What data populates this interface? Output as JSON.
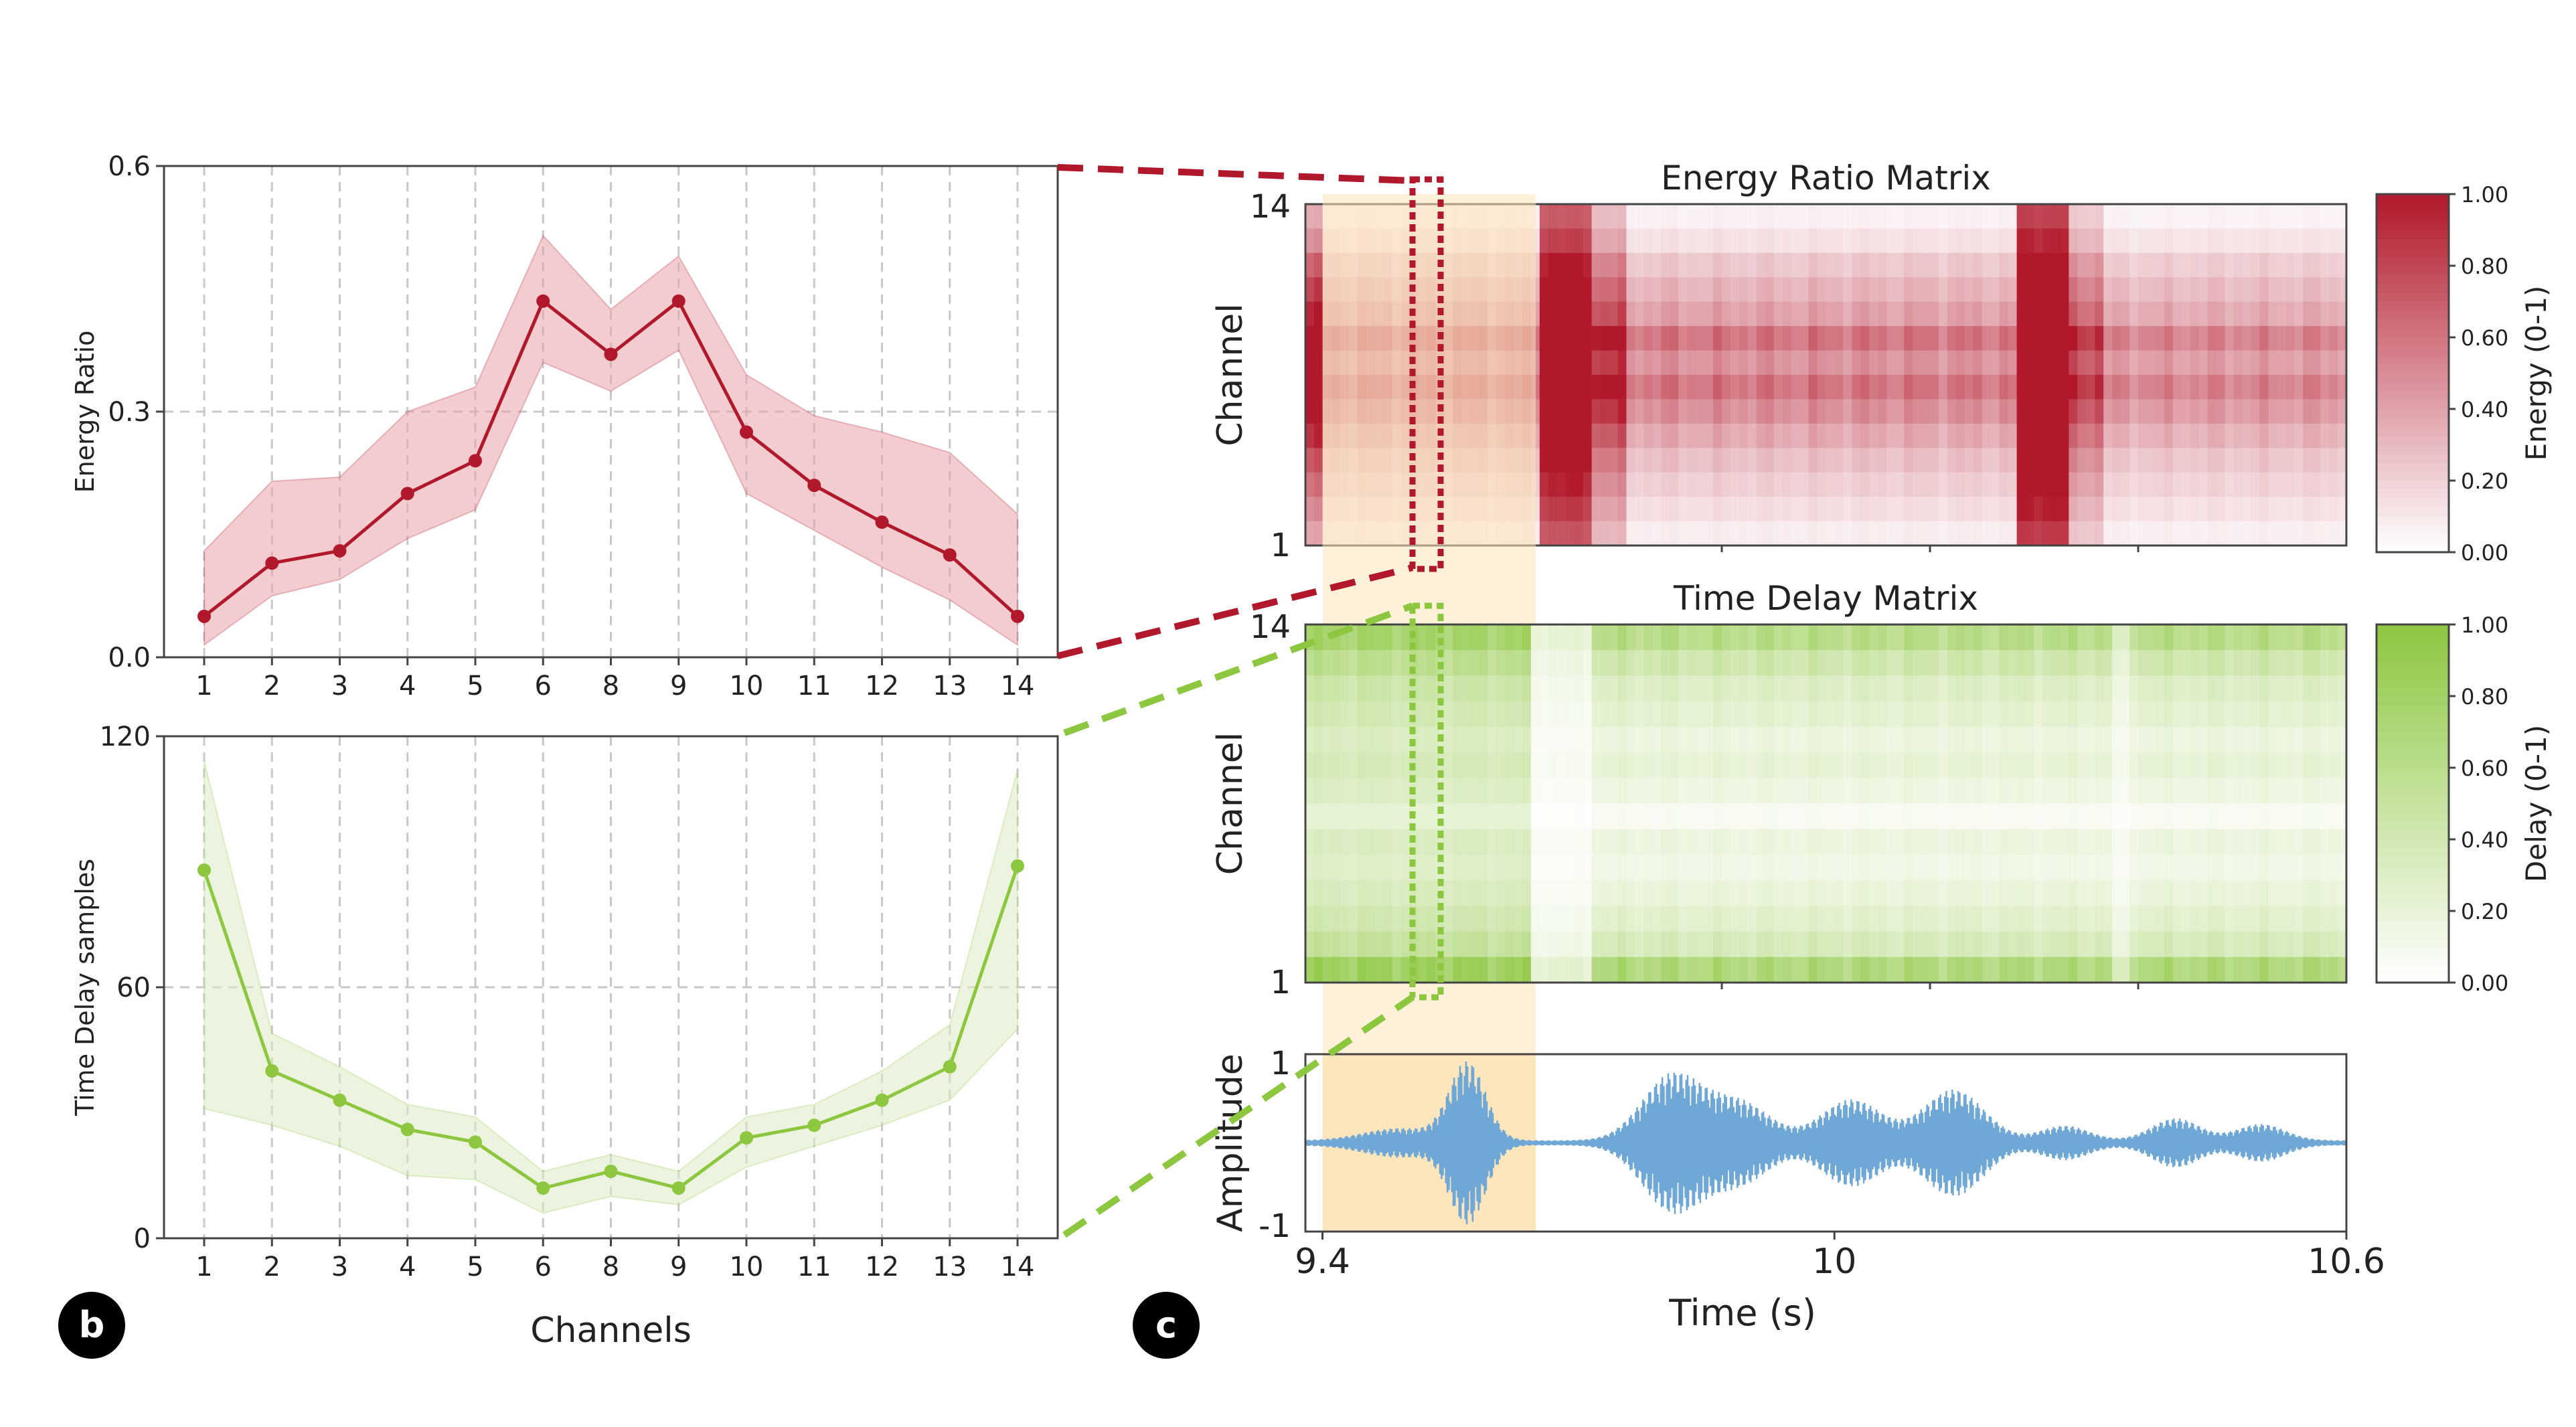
{
  "panel_b_label": "b",
  "panel_c_label": "c",
  "colors": {
    "energy": "#b2182b",
    "energy_band": "#e8a3a8",
    "delay": "#8dc63f",
    "delay_band": "#dcebc4",
    "highlight": "#fde6bc",
    "waveform": "#6fa8d6",
    "grid": "#c8c8c8"
  },
  "chart_data": [
    {
      "id": "energy_line",
      "type": "line",
      "title": "",
      "xlabel": "",
      "ylabel": "Energy Ratio",
      "categories": [
        "1",
        "2",
        "3",
        "4",
        "5",
        "6",
        "8",
        "9",
        "10",
        "11",
        "12",
        "13",
        "14"
      ],
      "series": [
        {
          "name": "mean",
          "values": [
            0.05,
            0.115,
            0.13,
            0.2,
            0.24,
            0.435,
            0.37,
            0.435,
            0.275,
            0.21,
            0.165,
            0.125,
            0.05
          ]
        },
        {
          "name": "upper",
          "values": [
            0.13,
            0.215,
            0.22,
            0.3,
            0.33,
            0.515,
            0.425,
            0.49,
            0.345,
            0.295,
            0.275,
            0.25,
            0.175
          ]
        },
        {
          "name": "lower",
          "values": [
            0.015,
            0.075,
            0.095,
            0.145,
            0.18,
            0.36,
            0.325,
            0.375,
            0.2,
            0.155,
            0.11,
            0.07,
            0.015
          ]
        }
      ],
      "ylim": [
        0.0,
        0.6
      ],
      "yticks": [
        "0.0",
        "0.3",
        "0.6"
      ],
      "grid": true
    },
    {
      "id": "delay_line",
      "type": "line",
      "title": "",
      "xlabel": "Channels",
      "ylabel": "Time Delay samples",
      "categories": [
        "1",
        "2",
        "3",
        "4",
        "5",
        "6",
        "8",
        "9",
        "10",
        "11",
        "12",
        "13",
        "14"
      ],
      "series": [
        {
          "name": "mean",
          "values": [
            88,
            40,
            33,
            26,
            23,
            12,
            16,
            12,
            24,
            27,
            33,
            41,
            89
          ]
        },
        {
          "name": "upper",
          "values": [
            114,
            49,
            41,
            32,
            29,
            16,
            20,
            16,
            29,
            32,
            40,
            51,
            112
          ]
        },
        {
          "name": "lower",
          "values": [
            31,
            27,
            22,
            15,
            14,
            6,
            10,
            8,
            17,
            22,
            27,
            33,
            50
          ]
        }
      ],
      "ylim": [
        0,
        120
      ],
      "yticks": [
        "0",
        "60",
        "120"
      ],
      "grid": true
    },
    {
      "id": "energy_matrix",
      "type": "heatmap",
      "title": "Energy Ratio Matrix",
      "xlabel": "",
      "ylabel": "Channel",
      "yticks": [
        "1",
        "14"
      ],
      "rows": 14,
      "x_range": [
        9.38,
        10.6
      ],
      "colorbar_label": "Energy (0-1)",
      "colorbar_ticks": [
        "0.00",
        "0.20",
        "0.40",
        "0.60",
        "0.80",
        "1.00"
      ],
      "row_profile": [
        0.1,
        0.18,
        0.26,
        0.34,
        0.46,
        0.6,
        0.74,
        0.58,
        0.74,
        0.5,
        0.4,
        0.3,
        0.16,
        0.08
      ],
      "col_segments": [
        {
          "t0": 9.38,
          "t1": 9.4,
          "scale": 1.6,
          "base": 0.25
        },
        {
          "t0": 9.4,
          "t1": 9.65,
          "scale": 1.0,
          "base": 0.0
        },
        {
          "t0": 9.65,
          "t1": 9.72,
          "scale": 1.6,
          "base": 0.6
        },
        {
          "t0": 9.72,
          "t1": 9.76,
          "scale": 1.3,
          "base": 0.2
        },
        {
          "t0": 9.76,
          "t1": 10.21,
          "scale": 0.95,
          "base": 0.0
        },
        {
          "t0": 10.21,
          "t1": 10.27,
          "scale": 1.8,
          "base": 0.7
        },
        {
          "t0": 10.27,
          "t1": 10.32,
          "scale": 1.2,
          "base": 0.15
        },
        {
          "t0": 10.32,
          "t1": 10.6,
          "scale": 0.85,
          "base": 0.0
        }
      ]
    },
    {
      "id": "delay_matrix",
      "type": "heatmap",
      "title": "Time Delay Matrix",
      "xlabel": "",
      "ylabel": "Channel",
      "yticks": [
        "1",
        "14"
      ],
      "rows": 14,
      "x_range": [
        9.38,
        10.6
      ],
      "colorbar_label": "Delay (0-1)",
      "colorbar_ticks": [
        "0.00",
        "0.20",
        "0.40",
        "0.60",
        "0.80",
        "1.00"
      ],
      "row_profile": [
        0.8,
        0.42,
        0.3,
        0.22,
        0.15,
        0.2,
        0.08,
        0.18,
        0.25,
        0.2,
        0.28,
        0.35,
        0.5,
        0.72
      ],
      "col_segments": [
        {
          "t0": 9.38,
          "t1": 9.64,
          "scale": 1.0,
          "base": 0.15
        },
        {
          "t0": 9.64,
          "t1": 9.72,
          "scale": 0.35,
          "base": 0.0
        },
        {
          "t0": 9.72,
          "t1": 10.33,
          "scale": 1.0,
          "base": 0.0
        },
        {
          "t0": 10.33,
          "t1": 10.35,
          "scale": 0.45,
          "base": 0.0
        },
        {
          "t0": 10.35,
          "t1": 10.6,
          "scale": 1.0,
          "base": 0.0
        }
      ]
    },
    {
      "id": "waveform",
      "type": "line",
      "title": "",
      "xlabel": "Time (s)",
      "ylabel": "Amplitude",
      "x_range": [
        9.38,
        10.6
      ],
      "xticks": [
        "9.4",
        "10",
        "10.6"
      ],
      "xtick_values": [
        9.4,
        10.0,
        10.6
      ],
      "ylim": [
        -1,
        1
      ],
      "yticks": [
        "-1",
        "1"
      ],
      "highlight_range": [
        9.4,
        9.65
      ],
      "envelope_bursts": [
        {
          "t": 9.49,
          "amp": 0.15,
          "width": 0.06
        },
        {
          "t": 9.57,
          "amp": 0.95,
          "width": 0.03
        },
        {
          "t": 9.81,
          "amp": 0.8,
          "width": 0.05
        },
        {
          "t": 9.89,
          "amp": 0.45,
          "width": 0.05
        },
        {
          "t": 10.02,
          "amp": 0.5,
          "width": 0.05
        },
        {
          "t": 10.14,
          "amp": 0.62,
          "width": 0.05
        },
        {
          "t": 10.27,
          "amp": 0.18,
          "width": 0.04
        },
        {
          "t": 10.4,
          "amp": 0.27,
          "width": 0.04
        },
        {
          "t": 10.5,
          "amp": 0.2,
          "width": 0.04
        }
      ]
    }
  ]
}
